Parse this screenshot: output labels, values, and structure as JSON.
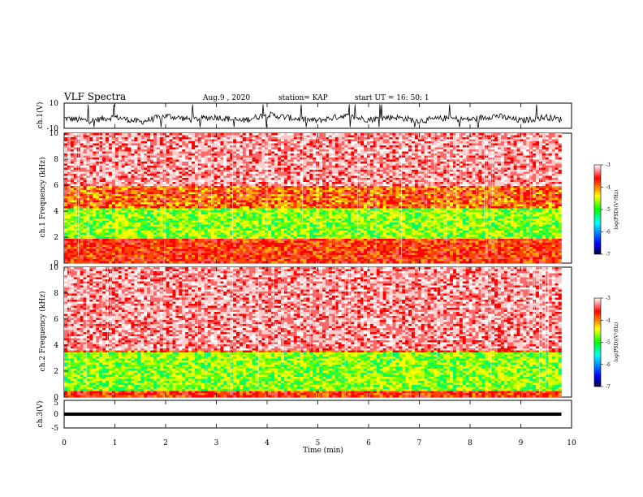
{
  "header": {
    "title": "VLF Spectra",
    "date": "Aug.9 , 2020",
    "station": "station= KAP",
    "start_ut": "start UT = 16: 50: 1"
  },
  "colors": {
    "axis": "#000000",
    "colormap": [
      "#000040",
      "#0000ff",
      "#00ffff",
      "#00ff00",
      "#ffff00",
      "#ff0000",
      "#ffffff"
    ]
  },
  "chart_data": [
    {
      "type": "line",
      "panel": "ch1-waveform",
      "ylabel": "ch.1(V)",
      "ylim": [
        -10,
        10
      ],
      "yticks": [
        "10",
        "-10"
      ],
      "x": [
        0,
        0.5,
        1,
        1.5,
        2,
        2.5,
        3,
        3.5,
        4,
        4.5,
        5,
        5.5,
        6,
        6.5,
        7,
        7.5,
        8,
        8.5,
        9,
        9.5,
        9.8
      ],
      "y": [
        -2,
        -4,
        -1,
        -5,
        0,
        -3,
        -1,
        -4,
        1,
        -2,
        -4,
        0,
        -3,
        -1,
        -4,
        -2,
        -3,
        0,
        -4,
        -1,
        -3
      ]
    },
    {
      "type": "heatmap",
      "panel": "ch1-spectrogram",
      "ylabel": "ch.1 Frequency (kHz)",
      "ylim": [
        0,
        10
      ],
      "yticks": [
        "0",
        "2",
        "4",
        "6",
        "8",
        "10"
      ],
      "colorbar": {
        "label": "log(PSD)(V²/Hz)",
        "range": [
          -7,
          -3
        ],
        "ticks": [
          "-3",
          "-4",
          "-5",
          "-6",
          "-7"
        ]
      },
      "description_bands_khz": {
        "red_dominant": [
          6,
          10
        ],
        "mixed": [
          4,
          6
        ],
        "green_band": [
          1.8,
          5
        ],
        "red_low": [
          0,
          1.8
        ]
      }
    },
    {
      "type": "heatmap",
      "panel": "ch2-spectrogram",
      "ylabel": "ch.2 Frequency (kHz)",
      "ylim": [
        0,
        10
      ],
      "yticks": [
        "0",
        "2",
        "4",
        "6",
        "8",
        "10"
      ],
      "colorbar": {
        "label": "log(PSD)(V²/Hz)",
        "range": [
          -7,
          -3
        ],
        "ticks": [
          "-3",
          "-4",
          "-5",
          "-6",
          "-7"
        ]
      },
      "description_bands_khz": {
        "red_dominant": [
          3.5,
          10
        ],
        "green_band": [
          0.5,
          3.5
        ]
      }
    },
    {
      "type": "line",
      "panel": "ch3-waveform",
      "ylabel": "ch.3(V)",
      "ylim": [
        -5,
        5
      ],
      "yticks": [
        "5",
        "0",
        "-5"
      ],
      "x": [
        0,
        9.8
      ],
      "y": [
        0,
        0
      ]
    }
  ],
  "xaxis": {
    "label": "Time (min)",
    "range": [
      0,
      10
    ],
    "ticks": [
      "0",
      "1",
      "2",
      "3",
      "4",
      "5",
      "6",
      "7",
      "8",
      "9",
      "10"
    ]
  }
}
